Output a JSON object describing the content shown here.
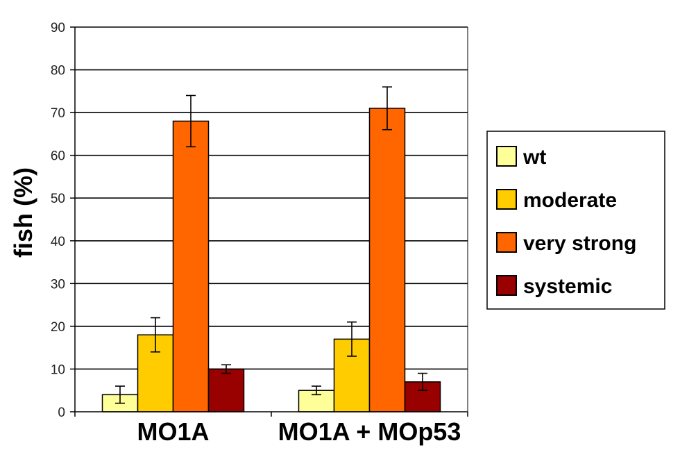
{
  "chart_data": {
    "type": "bar",
    "title": "",
    "xlabel": "",
    "ylabel": "fish (%)",
    "ylim": [
      0,
      90
    ],
    "yticks": [
      0,
      10,
      20,
      30,
      40,
      50,
      60,
      70,
      80,
      90
    ],
    "grid": true,
    "legend_position": "right",
    "categories": [
      "MO1A",
      "MO1A + MOp53"
    ],
    "series": [
      {
        "name": "wt",
        "color": "#ffff99",
        "values": [
          4,
          5
        ],
        "errors": [
          2,
          1
        ]
      },
      {
        "name": "moderate",
        "color": "#ffcc00",
        "values": [
          18,
          17
        ],
        "errors": [
          4,
          4
        ]
      },
      {
        "name": "very strong",
        "color": "#ff6600",
        "values": [
          68,
          71
        ],
        "errors": [
          6,
          5
        ]
      },
      {
        "name": "systemic",
        "color": "#990000",
        "values": [
          10,
          7
        ],
        "errors": [
          1,
          2
        ]
      }
    ]
  }
}
